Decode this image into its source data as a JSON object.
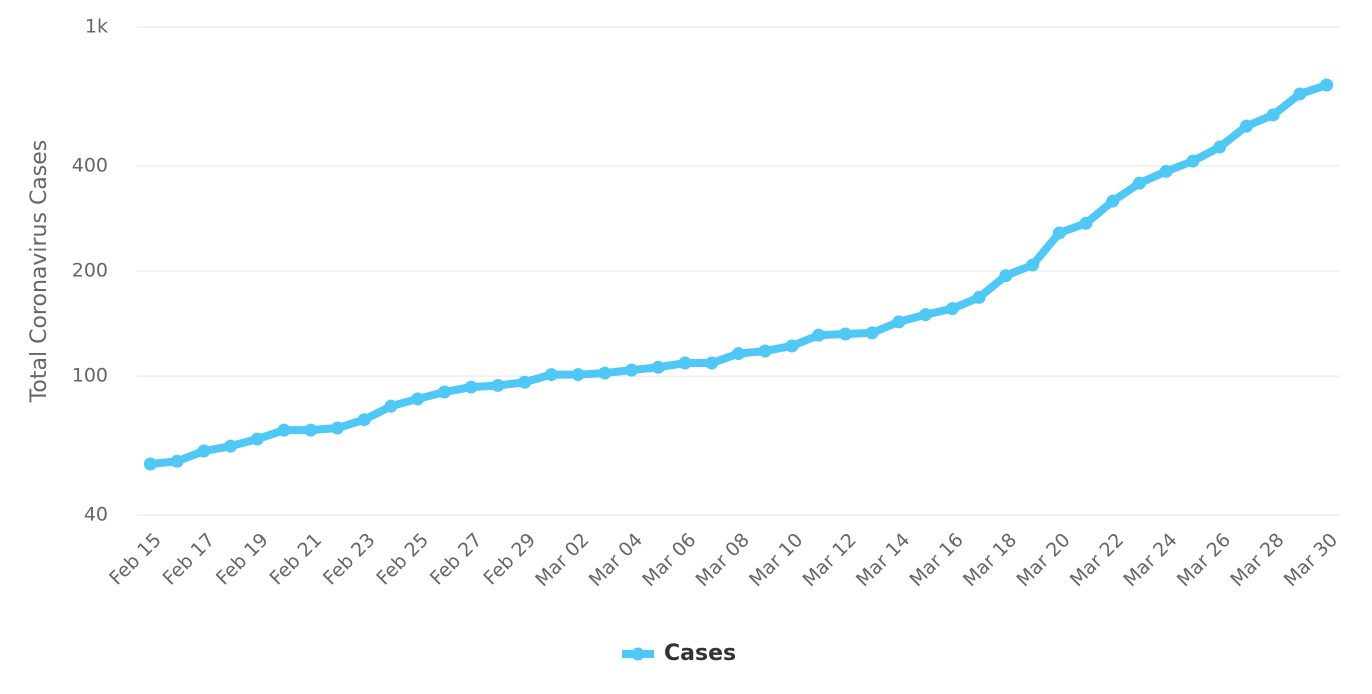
{
  "chart_data": {
    "type": "line",
    "y_label": "Total Coronavirus Cases",
    "categories": [
      "Feb 15",
      null,
      "Feb 17",
      null,
      "Feb 19",
      null,
      "Feb 21",
      null,
      "Feb 23",
      null,
      "Feb 25",
      null,
      "Feb 27",
      null,
      "Feb 29",
      null,
      "Mar 02",
      null,
      "Mar 04",
      null,
      "Mar 06",
      null,
      "Mar 08",
      null,
      "Mar 10",
      null,
      "Mar 12",
      null,
      "Mar 14",
      null,
      "Mar 16",
      null,
      "Mar 18",
      null,
      "Mar 20",
      null,
      "Mar 22",
      null,
      "Mar 24",
      null,
      "Mar 26",
      null,
      "Mar 28",
      null,
      "Mar 30"
    ],
    "series": [
      {
        "name": "Cases",
        "color": "#4fc8f6",
        "values": [
          56,
          57,
          61,
          63,
          66,
          70,
          70,
          71,
          75,
          82,
          86,
          90,
          93,
          94,
          96,
          101,
          101,
          102,
          104,
          106,
          109,
          109,
          116,
          118,
          122,
          131,
          132,
          133,
          143,
          150,
          156,
          168,
          194,
          208,
          257,
          274,
          317,
          357,
          386,
          413,
          453,
          520,
          560,
          643,
          682
        ]
      }
    ],
    "ylim": [
      40,
      1000
    ],
    "yscale": "log",
    "yticks": [
      40,
      100,
      200,
      400,
      {
        "value": 1000,
        "label": "1k"
      }
    ],
    "grid": true,
    "legend": "bottom"
  }
}
